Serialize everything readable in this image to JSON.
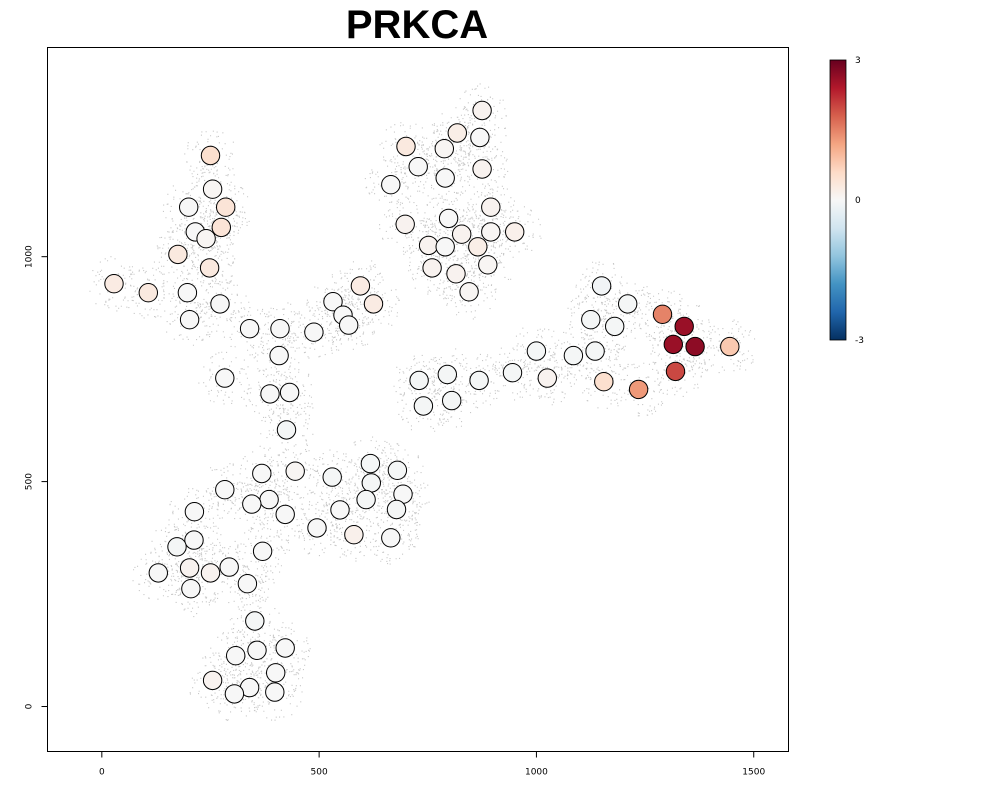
{
  "chart_data": {
    "type": "scatter",
    "title": "PRKCA",
    "xlabel": "",
    "ylabel": "",
    "xlim": [
      -125,
      1580
    ],
    "ylim": [
      -100,
      1465
    ],
    "x_ticks": [
      0,
      500,
      1000,
      1500
    ],
    "y_ticks": [
      0,
      500,
      1000
    ],
    "grid": false,
    "legend": "colorbar right",
    "colorbar": {
      "min": -3,
      "max": 3,
      "ticks": [
        3,
        0,
        -3
      ],
      "colors": [
        "#053061",
        "#2166ac",
        "#4393c3",
        "#92c5de",
        "#d1e5f0",
        "#f7f7f7",
        "#fddbc7",
        "#f4a582",
        "#d6604d",
        "#b2182b",
        "#67001f"
      ]
    },
    "background_color": "#c8c8c8",
    "spot_outline_color": "#000000",
    "points": [
      {
        "x": 250,
        "y": 1225,
        "v": 0.5
      },
      {
        "x": 255,
        "y": 1150,
        "v": 0.05
      },
      {
        "x": 200,
        "y": 1110,
        "v": 0.0
      },
      {
        "x": 285,
        "y": 1110,
        "v": 0.4
      },
      {
        "x": 215,
        "y": 1055,
        "v": 0.0
      },
      {
        "x": 275,
        "y": 1065,
        "v": 0.4
      },
      {
        "x": 240,
        "y": 1040,
        "v": 0.05
      },
      {
        "x": 175,
        "y": 1005,
        "v": 0.3
      },
      {
        "x": 248,
        "y": 975,
        "v": 0.3
      },
      {
        "x": 28,
        "y": 940,
        "v": 0.25
      },
      {
        "x": 107,
        "y": 920,
        "v": 0.3
      },
      {
        "x": 197,
        "y": 920,
        "v": 0.0
      },
      {
        "x": 272,
        "y": 895,
        "v": 0.0
      },
      {
        "x": 202,
        "y": 860,
        "v": 0.0
      },
      {
        "x": 340,
        "y": 840,
        "v": 0.0
      },
      {
        "x": 410,
        "y": 840,
        "v": 0.0
      },
      {
        "x": 488,
        "y": 832,
        "v": 0.0
      },
      {
        "x": 532,
        "y": 900,
        "v": 0.0
      },
      {
        "x": 555,
        "y": 870,
        "v": 0.0
      },
      {
        "x": 568,
        "y": 848,
        "v": 0.0
      },
      {
        "x": 595,
        "y": 935,
        "v": 0.25
      },
      {
        "x": 625,
        "y": 895,
        "v": 0.25
      },
      {
        "x": 408,
        "y": 780,
        "v": 0.0
      },
      {
        "x": 283,
        "y": 730,
        "v": 0.0
      },
      {
        "x": 387,
        "y": 695,
        "v": 0.0
      },
      {
        "x": 432,
        "y": 698,
        "v": 0.0
      },
      {
        "x": 425,
        "y": 615,
        "v": -0.05
      },
      {
        "x": 368,
        "y": 518,
        "v": 0.0
      },
      {
        "x": 445,
        "y": 523,
        "v": 0.05
      },
      {
        "x": 283,
        "y": 482,
        "v": 0.0
      },
      {
        "x": 385,
        "y": 460,
        "v": 0.0
      },
      {
        "x": 345,
        "y": 450,
        "v": 0.0
      },
      {
        "x": 422,
        "y": 427,
        "v": 0.0
      },
      {
        "x": 213,
        "y": 433,
        "v": 0.0
      },
      {
        "x": 212,
        "y": 370,
        "v": 0.0
      },
      {
        "x": 173,
        "y": 355,
        "v": -0.05
      },
      {
        "x": 370,
        "y": 345,
        "v": 0.0
      },
      {
        "x": 130,
        "y": 297,
        "v": 0.0
      },
      {
        "x": 202,
        "y": 308,
        "v": 0.1
      },
      {
        "x": 250,
        "y": 297,
        "v": 0.1
      },
      {
        "x": 293,
        "y": 310,
        "v": 0.0
      },
      {
        "x": 205,
        "y": 262,
        "v": 0.0
      },
      {
        "x": 335,
        "y": 273,
        "v": 0.0
      },
      {
        "x": 530,
        "y": 510,
        "v": -0.05
      },
      {
        "x": 618,
        "y": 540,
        "v": -0.05
      },
      {
        "x": 680,
        "y": 525,
        "v": -0.05
      },
      {
        "x": 620,
        "y": 497,
        "v": -0.05
      },
      {
        "x": 693,
        "y": 472,
        "v": 0.0
      },
      {
        "x": 608,
        "y": 460,
        "v": -0.05
      },
      {
        "x": 548,
        "y": 437,
        "v": 0.0
      },
      {
        "x": 678,
        "y": 438,
        "v": -0.05
      },
      {
        "x": 495,
        "y": 397,
        "v": 0.0
      },
      {
        "x": 580,
        "y": 382,
        "v": 0.15
      },
      {
        "x": 665,
        "y": 375,
        "v": 0.0
      },
      {
        "x": 352,
        "y": 190,
        "v": -0.05
      },
      {
        "x": 422,
        "y": 130,
        "v": 0.0
      },
      {
        "x": 357,
        "y": 125,
        "v": 0.0
      },
      {
        "x": 308,
        "y": 113,
        "v": 0.0
      },
      {
        "x": 400,
        "y": 75,
        "v": 0.0
      },
      {
        "x": 255,
        "y": 58,
        "v": 0.1
      },
      {
        "x": 340,
        "y": 42,
        "v": 0.0
      },
      {
        "x": 305,
        "y": 28,
        "v": 0.0
      },
      {
        "x": 398,
        "y": 32,
        "v": 0.0
      },
      {
        "x": 875,
        "y": 1325,
        "v": 0.1
      },
      {
        "x": 700,
        "y": 1245,
        "v": 0.3
      },
      {
        "x": 818,
        "y": 1275,
        "v": 0.2
      },
      {
        "x": 870,
        "y": 1265,
        "v": 0.0
      },
      {
        "x": 788,
        "y": 1240,
        "v": 0.05
      },
      {
        "x": 728,
        "y": 1200,
        "v": 0.0
      },
      {
        "x": 875,
        "y": 1195,
        "v": 0.1
      },
      {
        "x": 790,
        "y": 1175,
        "v": 0.0
      },
      {
        "x": 665,
        "y": 1160,
        "v": 0.0
      },
      {
        "x": 895,
        "y": 1110,
        "v": 0.1
      },
      {
        "x": 798,
        "y": 1085,
        "v": 0.0
      },
      {
        "x": 698,
        "y": 1072,
        "v": 0.1
      },
      {
        "x": 828,
        "y": 1050,
        "v": 0.1
      },
      {
        "x": 895,
        "y": 1055,
        "v": 0.05
      },
      {
        "x": 950,
        "y": 1055,
        "v": 0.15
      },
      {
        "x": 752,
        "y": 1025,
        "v": 0.1
      },
      {
        "x": 790,
        "y": 1022,
        "v": 0.0
      },
      {
        "x": 865,
        "y": 1022,
        "v": 0.2
      },
      {
        "x": 760,
        "y": 975,
        "v": 0.1
      },
      {
        "x": 815,
        "y": 962,
        "v": 0.1
      },
      {
        "x": 888,
        "y": 982,
        "v": 0.05
      },
      {
        "x": 845,
        "y": 922,
        "v": 0.05
      },
      {
        "x": 1150,
        "y": 935,
        "v": -0.1
      },
      {
        "x": 1210,
        "y": 895,
        "v": -0.05
      },
      {
        "x": 1125,
        "y": 860,
        "v": -0.05
      },
      {
        "x": 1180,
        "y": 845,
        "v": -0.05
      },
      {
        "x": 1290,
        "y": 872,
        "v": 1.5
      },
      {
        "x": 1340,
        "y": 845,
        "v": 2.6
      },
      {
        "x": 1315,
        "y": 805,
        "v": 2.6
      },
      {
        "x": 1365,
        "y": 800,
        "v": 2.7
      },
      {
        "x": 1445,
        "y": 800,
        "v": 0.8
      },
      {
        "x": 1000,
        "y": 790,
        "v": -0.05
      },
      {
        "x": 1085,
        "y": 780,
        "v": -0.05
      },
      {
        "x": 1135,
        "y": 790,
        "v": -0.05
      },
      {
        "x": 1320,
        "y": 745,
        "v": 2.0
      },
      {
        "x": 1155,
        "y": 722,
        "v": 0.5
      },
      {
        "x": 1235,
        "y": 705,
        "v": 1.3
      },
      {
        "x": 1025,
        "y": 730,
        "v": 0.1
      },
      {
        "x": 945,
        "y": 742,
        "v": -0.05
      },
      {
        "x": 868,
        "y": 725,
        "v": -0.05
      },
      {
        "x": 730,
        "y": 725,
        "v": -0.05
      },
      {
        "x": 795,
        "y": 738,
        "v": -0.05
      },
      {
        "x": 740,
        "y": 668,
        "v": -0.05
      },
      {
        "x": 805,
        "y": 680,
        "v": -0.05
      }
    ]
  }
}
